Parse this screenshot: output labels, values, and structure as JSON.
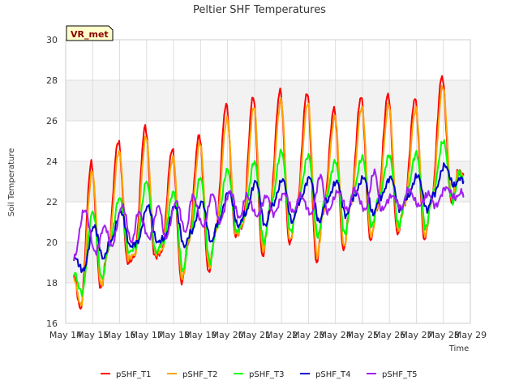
{
  "chart_data": {
    "type": "line",
    "title": "Peltier SHF Temperatures",
    "xlabel": "Time",
    "ylabel": "Soil Temperature",
    "badge": "VR_met",
    "x_ticks": [
      "May 14",
      "May 15",
      "May 16",
      "May 17",
      "May 18",
      "May 19",
      "May 20",
      "May 21",
      "May 22",
      "May 23",
      "May 24",
      "May 25",
      "May 26",
      "May 27",
      "May 28",
      "May 29"
    ],
    "xlim": [
      0,
      15
    ],
    "ylim": [
      16,
      30
    ],
    "y_ticks": [
      16,
      18,
      20,
      22,
      24,
      26,
      28,
      30
    ],
    "grid": true,
    "legend_position": "bottom",
    "series": [
      {
        "name": "pSHF_T1",
        "color": "#ff0000",
        "x": [
          0.3,
          0.55,
          0.95,
          1.3,
          1.55,
          1.95,
          2.3,
          2.55,
          2.95,
          3.3,
          3.55,
          3.95,
          4.3,
          4.55,
          4.95,
          5.3,
          5.55,
          5.95,
          6.3,
          6.55,
          6.95,
          7.3,
          7.55,
          7.95,
          8.3,
          8.55,
          8.95,
          9.3,
          9.55,
          9.95,
          10.3,
          10.55,
          10.95,
          11.3,
          11.55,
          11.95,
          12.3,
          12.55,
          12.95,
          13.3,
          13.55,
          13.95,
          14.3,
          14.55,
          14.75
        ],
        "y": [
          18.4,
          16.7,
          23.9,
          17.7,
          19.5,
          25.0,
          19.0,
          19.3,
          25.7,
          19.3,
          19.5,
          24.6,
          18.0,
          20.0,
          25.3,
          18.5,
          20.5,
          26.8,
          20.3,
          20.8,
          27.2,
          19.3,
          21.5,
          27.5,
          19.9,
          21.6,
          27.4,
          19.0,
          21.5,
          26.6,
          19.6,
          21.8,
          27.2,
          20.1,
          21.7,
          27.3,
          20.4,
          21.8,
          27.1,
          20.1,
          22.0,
          28.2,
          22.0,
          23.5,
          23.3
        ]
      },
      {
        "name": "pSHF_T2",
        "color": "#ffa500",
        "x": [
          0.3,
          0.57,
          0.98,
          1.32,
          1.57,
          1.98,
          2.32,
          2.57,
          2.98,
          3.32,
          3.57,
          3.98,
          4.32,
          4.57,
          4.98,
          5.32,
          5.57,
          5.98,
          6.32,
          6.57,
          6.98,
          7.32,
          7.57,
          7.98,
          8.32,
          8.57,
          8.98,
          9.32,
          9.57,
          9.98,
          10.32,
          10.57,
          10.98,
          11.32,
          11.57,
          11.98,
          12.32,
          12.57,
          12.98,
          13.32,
          13.57,
          13.98,
          14.32,
          14.57,
          14.75
        ],
        "y": [
          18.2,
          16.9,
          23.5,
          17.9,
          19.6,
          24.5,
          19.2,
          19.4,
          25.2,
          19.5,
          19.6,
          24.2,
          18.2,
          20.1,
          24.9,
          18.8,
          20.6,
          26.1,
          20.4,
          20.9,
          26.7,
          19.6,
          21.6,
          27.0,
          20.1,
          21.7,
          26.9,
          19.3,
          21.6,
          26.2,
          19.8,
          21.9,
          26.7,
          20.3,
          21.8,
          26.8,
          20.6,
          21.9,
          26.6,
          20.3,
          22.1,
          27.7,
          22.1,
          23.5,
          23.2
        ]
      },
      {
        "name": "pSHF_T3",
        "color": "#00ff00",
        "x": [
          0.3,
          0.6,
          1.0,
          1.35,
          1.6,
          2.0,
          2.35,
          2.6,
          3.0,
          3.35,
          3.6,
          4.0,
          4.35,
          4.6,
          5.0,
          5.35,
          5.6,
          6.0,
          6.35,
          6.6,
          7.0,
          7.35,
          7.6,
          8.0,
          8.35,
          8.6,
          9.0,
          9.35,
          9.6,
          10.0,
          10.35,
          10.6,
          11.0,
          11.35,
          11.6,
          12.0,
          12.35,
          12.6,
          13.0,
          13.35,
          13.6,
          14.0,
          14.35,
          14.6,
          14.75
        ],
        "y": [
          18.5,
          17.5,
          21.5,
          18.2,
          19.8,
          22.2,
          19.5,
          19.8,
          23.0,
          19.5,
          20.0,
          22.5,
          18.6,
          20.4,
          23.2,
          19.0,
          20.8,
          23.6,
          20.5,
          21.2,
          24.0,
          20.0,
          21.8,
          24.5,
          20.5,
          22.0,
          24.3,
          20.3,
          22.0,
          24.0,
          20.4,
          22.2,
          24.2,
          20.8,
          22.2,
          24.3,
          20.8,
          22.2,
          24.4,
          20.7,
          22.4,
          25.0,
          22.0,
          23.5,
          23.0
        ]
      },
      {
        "name": "pSHF_T4",
        "color": "#0000cd",
        "x": [
          0.3,
          0.65,
          1.05,
          1.4,
          1.65,
          2.05,
          2.4,
          2.65,
          3.05,
          3.4,
          3.65,
          4.05,
          4.4,
          4.65,
          5.05,
          5.4,
          5.65,
          6.05,
          6.4,
          6.65,
          7.05,
          7.4,
          7.65,
          8.05,
          8.4,
          8.65,
          9.05,
          9.4,
          9.65,
          10.05,
          10.4,
          10.65,
          11.05,
          11.4,
          11.65,
          12.05,
          12.4,
          12.65,
          13.05,
          13.4,
          13.65,
          14.05,
          14.4,
          14.65,
          14.75
        ],
        "y": [
          19.3,
          18.6,
          20.8,
          19.2,
          20.0,
          21.5,
          19.8,
          20.0,
          21.8,
          20.0,
          20.2,
          21.8,
          19.8,
          20.5,
          22.0,
          20.0,
          21.0,
          22.5,
          20.8,
          21.4,
          23.0,
          20.8,
          21.8,
          23.1,
          21.0,
          22.0,
          23.2,
          21.0,
          22.0,
          23.0,
          21.3,
          22.2,
          23.2,
          21.4,
          22.2,
          23.2,
          21.6,
          22.2,
          23.3,
          21.6,
          22.4,
          23.8,
          22.8,
          23.2,
          23.0
        ]
      },
      {
        "name": "pSHF_T5",
        "color": "#a020f0",
        "x": [
          0.3,
          0.7,
          1.1,
          1.45,
          1.7,
          2.1,
          2.45,
          2.7,
          3.1,
          3.45,
          3.7,
          4.1,
          4.45,
          4.7,
          5.1,
          5.45,
          5.7,
          6.1,
          6.45,
          6.7,
          7.1,
          7.45,
          7.7,
          8.1,
          8.45,
          8.7,
          9.1,
          9.45,
          9.7,
          10.1,
          10.45,
          10.7,
          11.1,
          11.45,
          11.7,
          12.1,
          12.45,
          12.7,
          13.1,
          13.45,
          13.7,
          14.1,
          14.45,
          14.7,
          14.75
        ],
        "y": [
          19.2,
          21.6,
          19.5,
          20.8,
          19.8,
          21.8,
          20.0,
          21.5,
          20.2,
          21.8,
          20.2,
          22.0,
          20.5,
          22.3,
          20.8,
          22.4,
          21.0,
          22.5,
          21.2,
          22.3,
          21.3,
          22.3,
          21.4,
          22.4,
          21.5,
          22.3,
          21.4,
          23.3,
          21.5,
          22.5,
          21.6,
          22.6,
          21.6,
          23.5,
          21.6,
          22.3,
          21.7,
          22.6,
          21.8,
          22.4,
          21.8,
          22.7,
          22.2,
          22.5,
          22.3
        ]
      }
    ]
  }
}
